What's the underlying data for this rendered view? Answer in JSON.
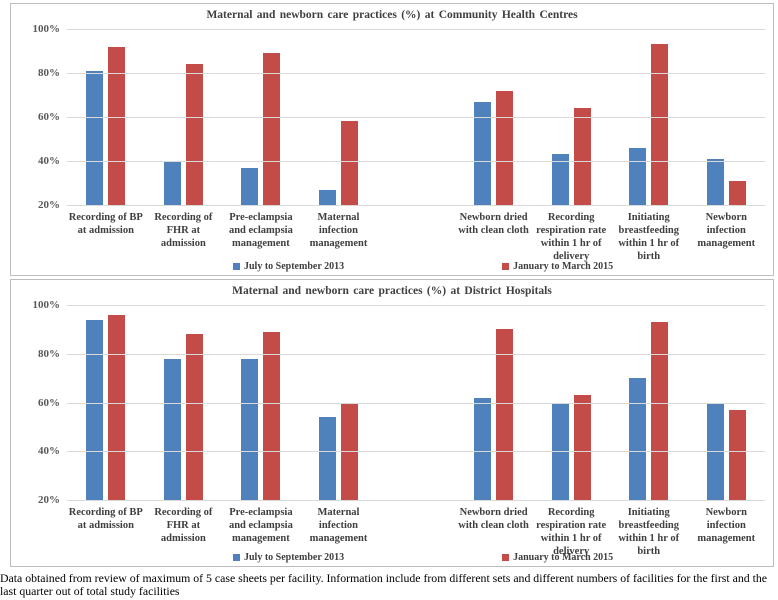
{
  "chart_data": [
    {
      "type": "bar",
      "title": "Maternal and newborn care practices (%) at Community Health Centres",
      "ylim": [
        20,
        100
      ],
      "yticks": [
        "100%",
        "80%",
        "60%",
        "40%",
        "20%"
      ],
      "grid": true,
      "legend_position": "bottom",
      "categories": [
        "Recording of BP at admission",
        "Recording of FHR at admission",
        "Pre-eclampsia and eclampsia management",
        "Maternal infection management",
        "Newborn dried with clean cloth",
        "Recording respiration rate within 1 hr of delivery",
        "Initiating breastfeeding within 1 hr of birth",
        "Newborn infection management"
      ],
      "series": [
        {
          "name": "July to September 2013",
          "color": "#4F81BD",
          "values": [
            81,
            40,
            37,
            27,
            67,
            43,
            46,
            41
          ]
        },
        {
          "name": "January to March 2015",
          "color": "#C34C48",
          "values": [
            92,
            84,
            89,
            58,
            72,
            64,
            93,
            31
          ]
        }
      ]
    },
    {
      "type": "bar",
      "title": "Maternal and newborn care practices (%) at District Hospitals",
      "ylim": [
        20,
        100
      ],
      "yticks": [
        "100%",
        "80%",
        "60%",
        "40%",
        "20%"
      ],
      "grid": true,
      "legend_position": "bottom",
      "categories": [
        "Recording of BP at admission",
        "Recording of FHR at admission",
        "Pre-eclampsia and eclampsia management",
        "Maternal infection management",
        "Newborn dried with clean cloth",
        "Recording respiration rate within 1 hr of delivery",
        "Initiating breastfeeding within 1 hr of birth",
        "Newborn infection management"
      ],
      "series": [
        {
          "name": "July to September 2013",
          "color": "#4F81BD",
          "values": [
            94,
            78,
            78,
            54,
            62,
            60,
            70,
            60
          ]
        },
        {
          "name": "January to March 2015",
          "color": "#C34C48",
          "values": [
            96,
            88,
            89,
            60,
            90,
            63,
            93,
            57
          ]
        }
      ]
    }
  ],
  "colors": {
    "series_blue": "#4F81BD",
    "series_red": "#C34C48",
    "gridline": "#D9D9D9",
    "panel_border": "#BDBDBD",
    "text": "#404040"
  },
  "caption": "Data obtained from review of maximum of 5 case sheets per facility. Information include from different sets and different numbers of facilities for the first and the last quarter out of total study facilities"
}
